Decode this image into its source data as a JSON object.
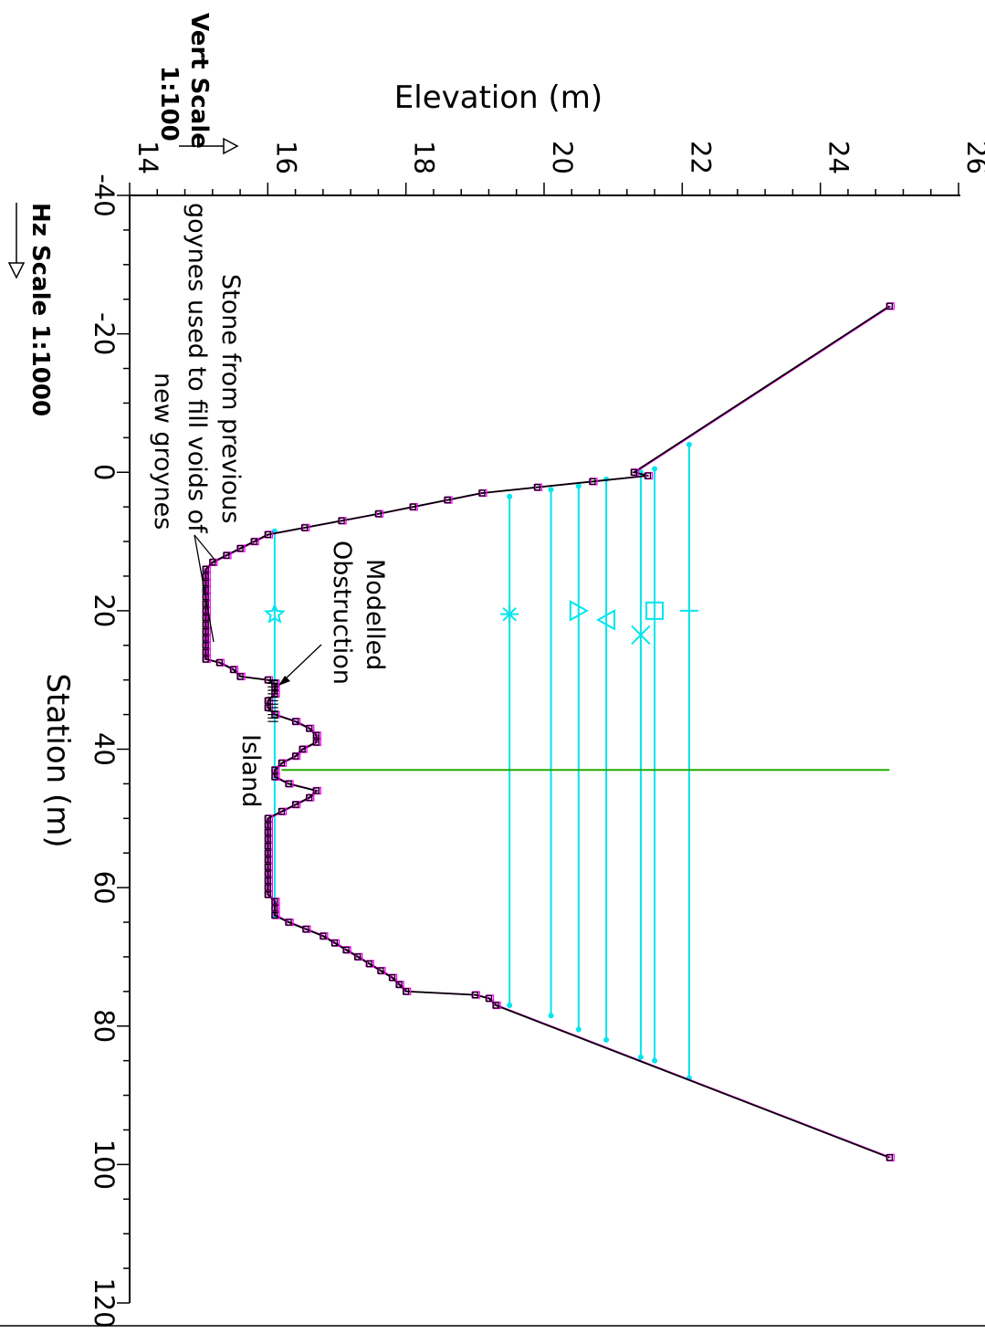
{
  "chart_data": {
    "type": "line",
    "orientation": "rotated-90-clockwise",
    "xlabel": "Station (m)",
    "ylabel": "Elevation (m)",
    "xlim": [
      -40,
      120
    ],
    "ylim": [
      14,
      26
    ],
    "x_ticks": [
      -40,
      -20,
      0,
      20,
      40,
      60,
      80,
      100,
      120
    ],
    "y_ticks": [
      14,
      16,
      18,
      20,
      22,
      24,
      26
    ],
    "hz_scale": "Hz Scale 1:1000",
    "vert_scale_title": "Vert Scale",
    "vert_scale_value": "1:100",
    "colors": {
      "ground": "#000000",
      "ground_alt": "#ff00ff",
      "water": "#00e5ee",
      "island_marker": "#22aa00"
    },
    "series": [
      {
        "role": "ground",
        "points": [
          [
            -24,
            25.0
          ],
          [
            0,
            21.3
          ],
          [
            0.5,
            21.5
          ],
          [
            3,
            19.1
          ],
          [
            6,
            17.6
          ],
          [
            9,
            16.0
          ],
          [
            10,
            15.8
          ],
          [
            11,
            15.6
          ],
          [
            12,
            15.4
          ],
          [
            13,
            15.2
          ],
          [
            14,
            15.1
          ],
          [
            15,
            15.1
          ],
          [
            16,
            15.1
          ],
          [
            18,
            15.1
          ],
          [
            22,
            15.1
          ],
          [
            25,
            15.1
          ],
          [
            26,
            15.1
          ],
          [
            27,
            15.1
          ],
          [
            27.5,
            15.3
          ],
          [
            28.5,
            15.5
          ],
          [
            29.5,
            15.6
          ],
          [
            30,
            16.0
          ],
          [
            30.5,
            16.1
          ],
          [
            31,
            16.1
          ],
          [
            32,
            16.1
          ],
          [
            33,
            16.0
          ],
          [
            34,
            16.0
          ],
          [
            35,
            16.1
          ],
          [
            36,
            16.4
          ],
          [
            37,
            16.6
          ],
          [
            38,
            16.7
          ],
          [
            39,
            16.7
          ],
          [
            40,
            16.5
          ],
          [
            41,
            16.4
          ],
          [
            42,
            16.2
          ],
          [
            43,
            16.1
          ],
          [
            44,
            16.1
          ],
          [
            45,
            16.3
          ],
          [
            46,
            16.7
          ],
          [
            47,
            16.6
          ],
          [
            48,
            16.4
          ],
          [
            49,
            16.2
          ],
          [
            50,
            16.0
          ],
          [
            52,
            16.0
          ],
          [
            55,
            16.0
          ],
          [
            60,
            16.0
          ],
          [
            61,
            16.0
          ],
          [
            62,
            16.1
          ],
          [
            64,
            16.1
          ],
          [
            65,
            16.3
          ],
          [
            67,
            16.8
          ],
          [
            70,
            17.3
          ],
          [
            73,
            17.8
          ],
          [
            75,
            18.0
          ],
          [
            75.5,
            19.0
          ],
          [
            76,
            19.2
          ],
          [
            77,
            19.3
          ],
          [
            99,
            25.0
          ]
        ]
      }
    ],
    "water_levels": [
      {
        "elevation": 16.1,
        "from_station": 8.5,
        "to_station": 64.0,
        "marker": "star",
        "marker_station": 20.5
      },
      {
        "elevation": 19.5,
        "from_station": 3.5,
        "to_station": 77.0,
        "marker": "asterisk",
        "marker_station": 20.5
      },
      {
        "elevation": 20.1,
        "from_station": 2.5,
        "to_station": 78.5,
        "marker": "none",
        "marker_station": null
      },
      {
        "elevation": 20.5,
        "from_station": 2.0,
        "to_station": 80.5,
        "marker": "triangle-right",
        "marker_station": 20.0
      },
      {
        "elevation": 20.9,
        "from_station": 1.0,
        "to_station": 82.0,
        "marker": "triangle-left",
        "marker_station": 20.0
      },
      {
        "elevation": 21.4,
        "from_station": 0.0,
        "to_station": 84.5,
        "marker": "x",
        "marker_station": 23.5
      },
      {
        "elevation": 21.6,
        "from_station": -0.5,
        "to_station": 85.0,
        "marker": "square",
        "marker_station": 20.0
      },
      {
        "elevation": 22.1,
        "from_station": -4.0,
        "to_station": 87.5,
        "marker": "plus",
        "marker_station": 20.0
      }
    ],
    "island_marker": {
      "station": 43.0,
      "elev_from": 16.2,
      "elev_to": 25.0
    },
    "annotations": [
      {
        "id": "stone",
        "lines": [
          "Stone from previous",
          "goynes used to fill voids of",
          "new groynes"
        ]
      },
      {
        "id": "obstruction",
        "lines": [
          "Modelled",
          "Obstruction"
        ]
      },
      {
        "id": "island",
        "lines": [
          "Island"
        ]
      }
    ]
  }
}
